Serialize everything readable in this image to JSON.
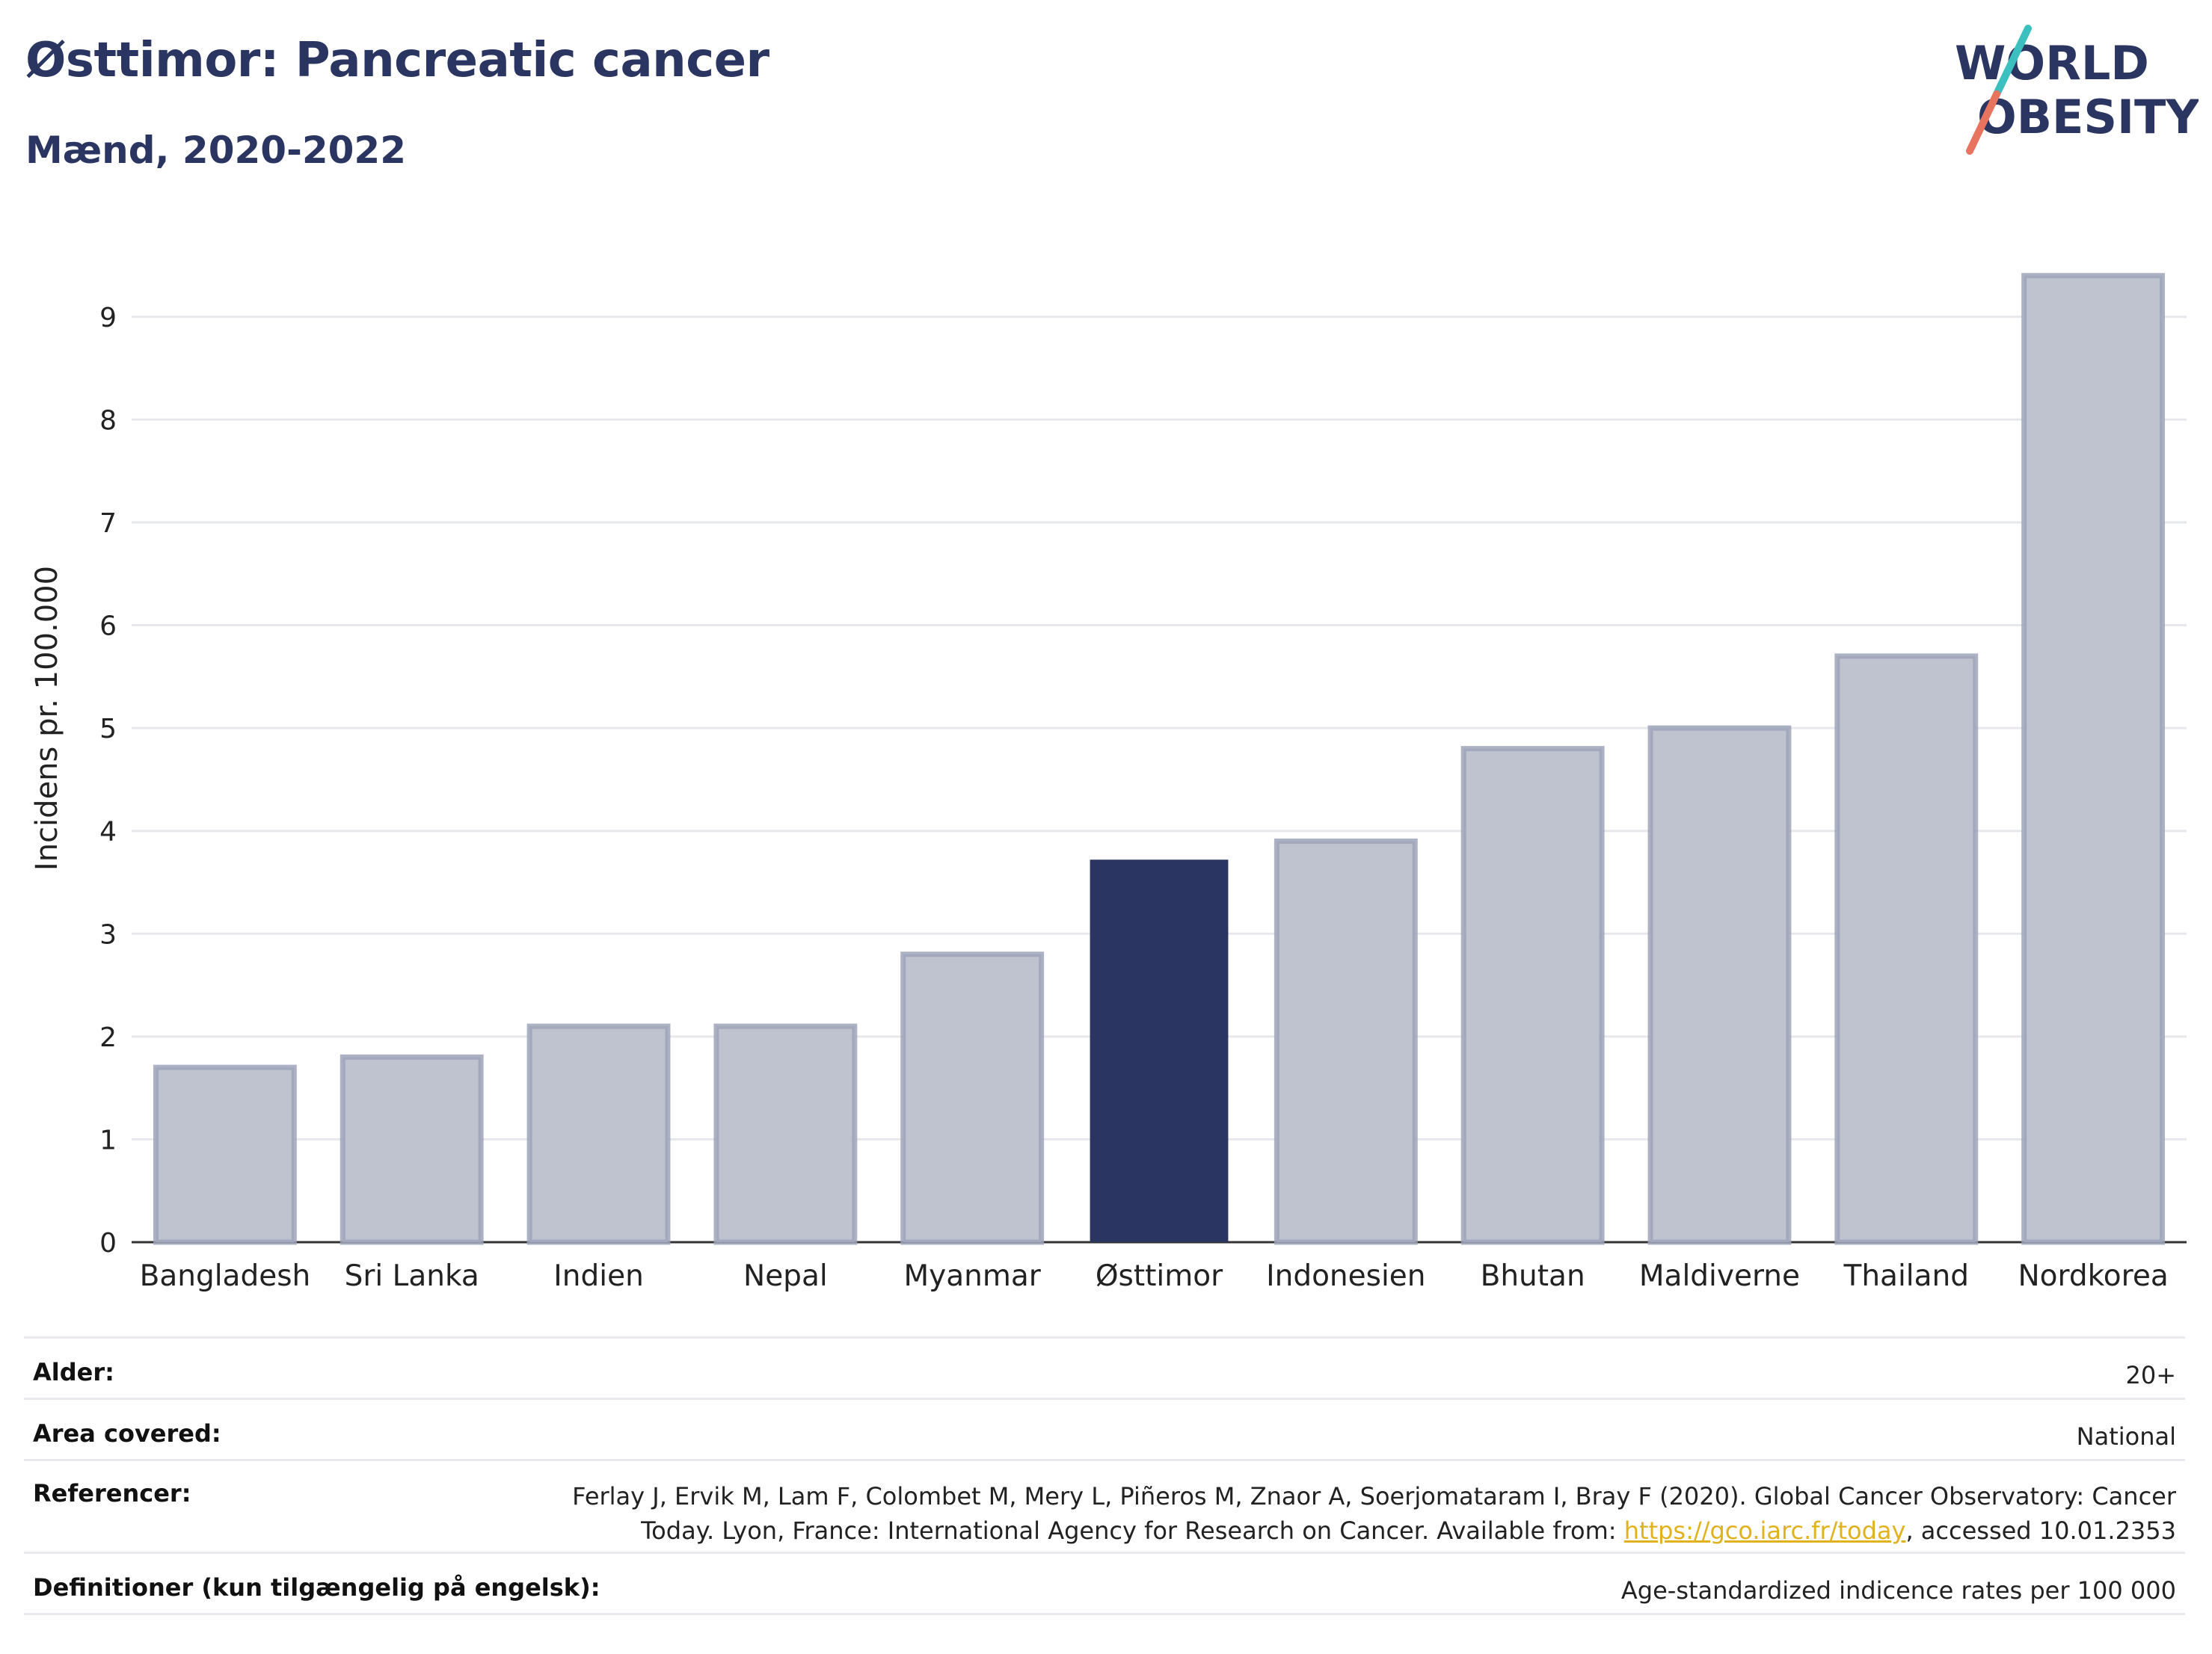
{
  "header": {
    "title": "Østtimor: Pancreatic cancer",
    "subtitle": "Mænd, 2020-2022",
    "logo_text_line1": "WORLD",
    "logo_text_line2": "OBESITY"
  },
  "colors": {
    "highlight": "#2b3561",
    "bar_fill": "#bfc3d0",
    "bar_stroke": "#9ea3b8",
    "grid": "#e6e8ec",
    "logo_teal": "#3cbfbf",
    "logo_coral": "#e8735f"
  },
  "chart_data": {
    "type": "bar",
    "categories": [
      "Bangladesh",
      "Sri Lanka",
      "Indien",
      "Nepal",
      "Myanmar",
      "Østtimor",
      "Indonesien",
      "Bhutan",
      "Maldiverne",
      "Thailand",
      "Nordkorea"
    ],
    "values": [
      1.7,
      1.8,
      2.1,
      2.1,
      2.8,
      3.72,
      3.9,
      4.8,
      5.0,
      5.7,
      9.4
    ],
    "highlight_category": "Østtimor",
    "ylabel": "Incidens pr. 100.000",
    "xlabel": "",
    "ylim": [
      0,
      9.9
    ],
    "yticks": [
      0,
      1,
      2,
      3,
      4,
      5,
      6,
      7,
      8,
      9
    ],
    "grid": "horizontal"
  },
  "meta": {
    "age_label": "Alder:",
    "age_value": "20+",
    "area_label": "Area covered:",
    "area_value": "National",
    "ref_label": "Referencer:",
    "ref_line1": "Ferlay J, Ervik M, Lam F, Colombet M, Mery L, Piñeros M, Znaor A, Soerjomataram I, Bray F (2020). Global Cancer Observatory: Cancer",
    "ref_line2_before": "Today. Lyon, France: International Agency for Research on Cancer. Available from: ",
    "ref_link": "https://gco.iarc.fr/today",
    "ref_line2_after": ", accessed 10.01.2353",
    "def_label": "Definitioner (kun tilgængelig på engelsk):",
    "def_value": "Age-standardized indicence rates per 100 000"
  }
}
